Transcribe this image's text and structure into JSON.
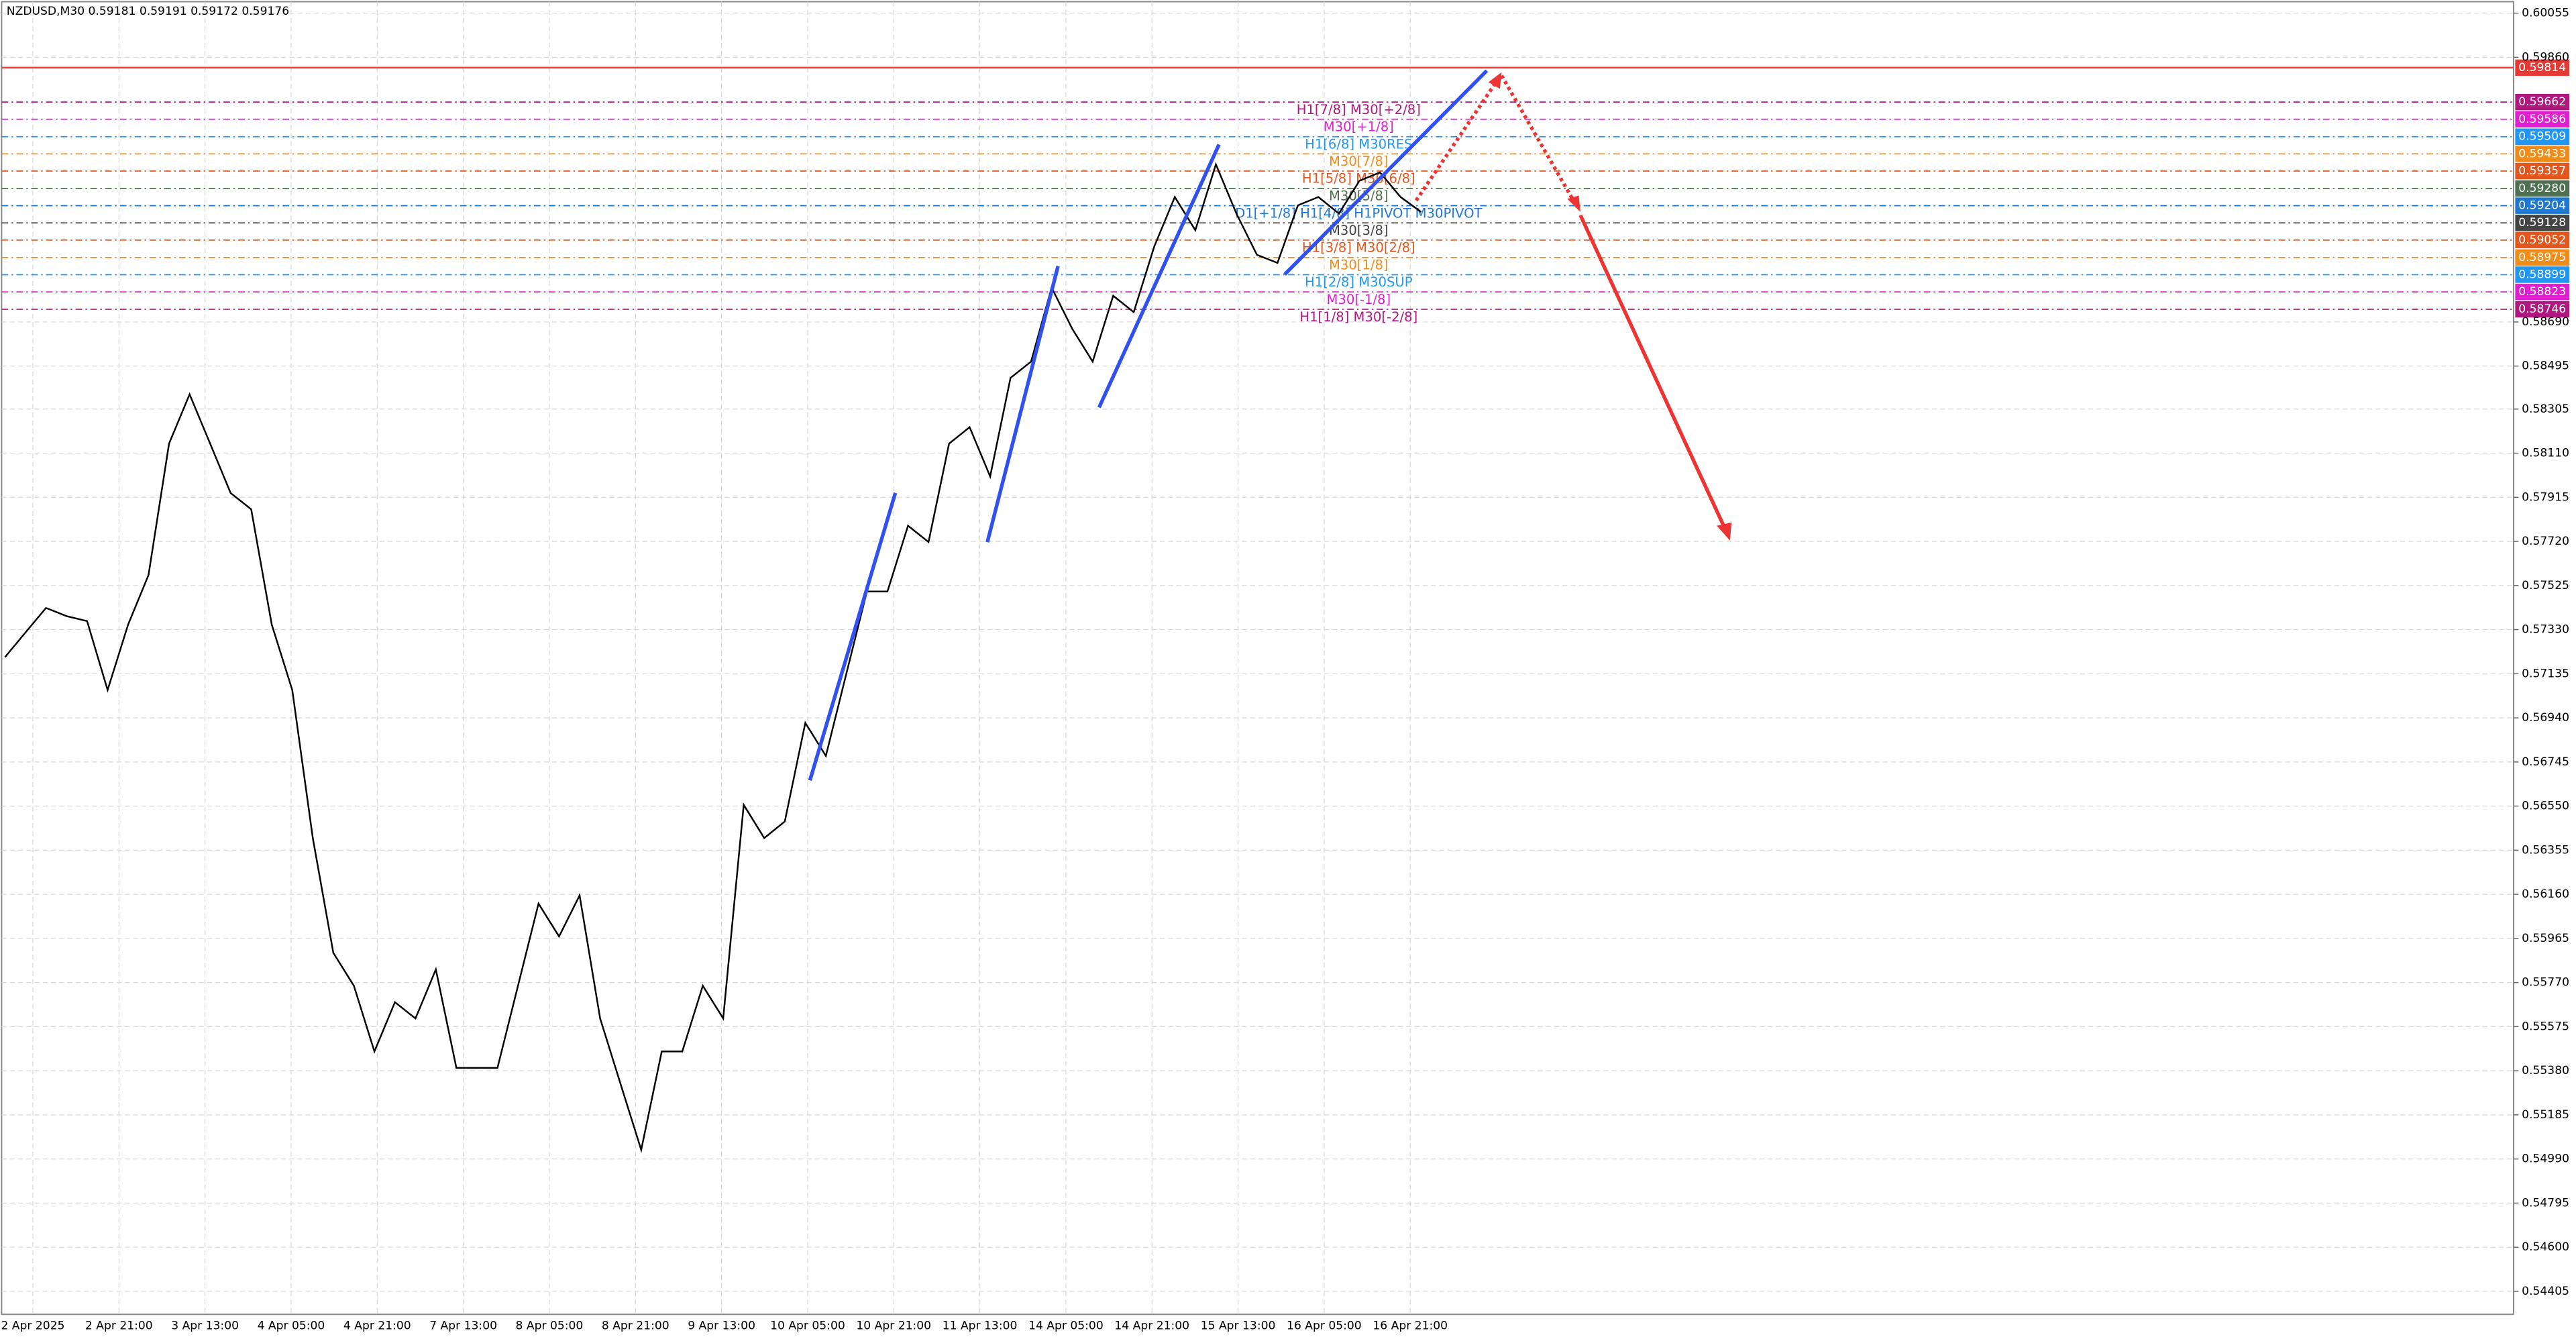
{
  "chart_data": {
    "type": "line",
    "title": "NZDUSD,M30  0.59181 0.59191 0.59172 0.59176",
    "ylim": [
      0.54405,
      0.60055
    ],
    "yticks": [
      0.60055,
      {
        "value": 0.5986,
        "label": "0.59860"
      },
      {
        "value": 0.5869,
        "label": "0.58690"
      },
      0.58495,
      0.58305,
      {
        "value": 0.5811,
        "label": "0.58110"
      },
      0.57915,
      {
        "value": 0.5772,
        "label": "0.57720"
      },
      0.57525,
      {
        "value": 0.5733,
        "label": "0.57330"
      },
      0.57135,
      {
        "value": 0.5694,
        "label": "0.56940"
      },
      0.56745,
      {
        "value": 0.5655,
        "label": "0.56550"
      },
      0.56355,
      {
        "value": 0.5616,
        "label": "0.56160"
      },
      0.55965,
      {
        "value": 0.5577,
        "label": "0.55770"
      },
      0.55575,
      {
        "value": 0.5538,
        "label": "0.55380"
      },
      0.55185,
      {
        "value": 0.5499,
        "label": "0.54990"
      },
      0.54795,
      {
        "value": 0.546,
        "label": "0.54600"
      },
      0.54405
    ],
    "grid": true,
    "x_labels": [
      "2 Apr 2025",
      "2 Apr 21:00",
      "3 Apr 13:00",
      "4 Apr 05:00",
      "4 Apr 21:00",
      "7 Apr 13:00",
      "8 Apr 05:00",
      "8 Apr 21:00",
      "9 Apr 13:00",
      "10 Apr 05:00",
      "10 Apr 21:00",
      "11 Apr 13:00",
      "14 Apr 05:00",
      "14 Apr 21:00",
      "15 Apr 13:00",
      "16 Apr 05:00",
      "16 Apr 21:00"
    ],
    "series": [
      {
        "name": "NZDUSD",
        "color": "#000000",
        "values": [
          0.57208,
          0.57317,
          0.57426,
          0.5739,
          0.57368,
          0.57063,
          0.57353,
          0.57571,
          0.58152,
          0.5837,
          0.58152,
          0.57934,
          0.57862,
          0.57353,
          0.57063,
          0.56409,
          0.55901,
          0.55756,
          0.55465,
          0.55683,
          0.55611,
          0.55828,
          0.55393,
          0.55393,
          0.55393,
          0.55756,
          0.56119,
          0.55974,
          0.56155,
          0.55611,
          0.5532,
          0.5503,
          0.55465,
          0.55465,
          0.55756,
          0.55611,
          0.56555,
          0.56409,
          0.56482,
          0.56918,
          0.56772,
          0.57136,
          0.57499,
          0.57499,
          0.57789,
          0.57717,
          0.58152,
          0.58225,
          0.58007,
          0.58443,
          0.58515,
          0.58842,
          0.58661,
          0.58515,
          0.58806,
          0.58733,
          0.59024,
          0.59242,
          0.59096,
          0.59387,
          0.59169,
          0.58987,
          0.58951,
          0.59205,
          0.59242,
          0.59169,
          0.59314,
          0.59351,
          0.59242,
          0.59176
        ]
      }
    ],
    "levels": [
      {
        "price": 0.59814,
        "color": "#e53935"
      },
      {
        "price": 0.59662,
        "label": "H1[7/8] M30[+2/8]",
        "color": "#b0177f"
      },
      {
        "price": 0.59586,
        "label": "M30[+1/8]",
        "color": "#e020d0"
      },
      {
        "price": 0.59509,
        "label": "H1[6/8] M30RES",
        "color": "#2196f3"
      },
      {
        "price": 0.59433,
        "label": "M30[7/8]",
        "color": "#ef8c1a"
      },
      {
        "price": 0.59357,
        "label": "H1[5/8] M30[6/8]",
        "color": "#e2571e"
      },
      {
        "price": 0.5928,
        "price_label": "0.59280",
        "label": "M30[5/8]",
        "color": "#4e7050"
      },
      {
        "price": 0.59204,
        "label": "D1[+1/8] H1[4/8] H1PIVOT M30PIVOT",
        "color": "#1e78d2"
      },
      {
        "price": 0.59128,
        "label": "M30[3/8]",
        "color": "#444444"
      },
      {
        "price": 0.59052,
        "label": "H1[3/8] M30[2/8]",
        "color": "#e2571e"
      },
      {
        "price": 0.58975,
        "label": "M30[1/8]",
        "color": "#ef8c1a"
      },
      {
        "price": 0.58899,
        "label": "H1[2/8] M30SUP",
        "color": "#2196f3"
      },
      {
        "price": 0.58823,
        "label": "M30[-1/8]",
        "color": "#e020d0"
      },
      {
        "price": 0.58746,
        "label": "H1[1/8] M30[-2/8]",
        "color": "#b0177f"
      }
    ]
  }
}
